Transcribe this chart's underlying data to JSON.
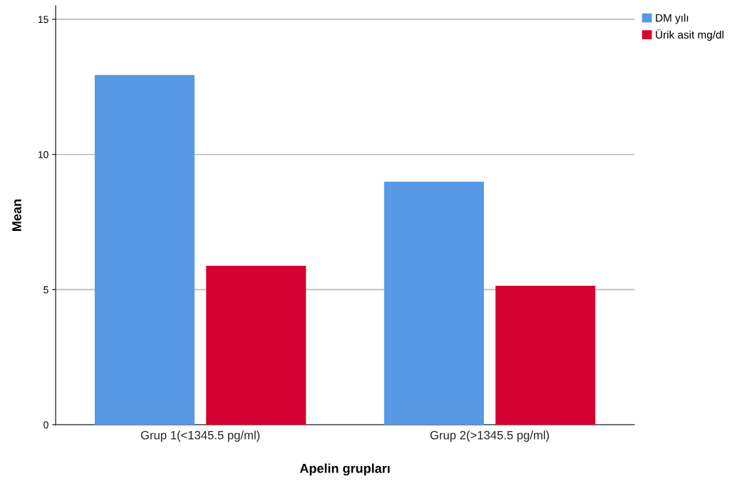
{
  "chart_data": {
    "type": "bar",
    "xlabel": "Apelin grupları",
    "ylabel": "Mean",
    "categories": [
      "Grup 1(<1345.5 pg/ml)",
      "Grup 2(>1345.5 pg/ml)"
    ],
    "series": [
      {
        "name": "DM yılı",
        "color": "#5899e5",
        "values": [
          12.94,
          8.99
        ]
      },
      {
        "name": "Ürik asit mg/dl",
        "color": "#d5002f",
        "values": [
          5.88,
          5.14
        ]
      }
    ],
    "ylim": [
      0,
      15.5
    ],
    "yticks": [
      0,
      5,
      10,
      15
    ],
    "grid": "y",
    "legend": "top right"
  }
}
